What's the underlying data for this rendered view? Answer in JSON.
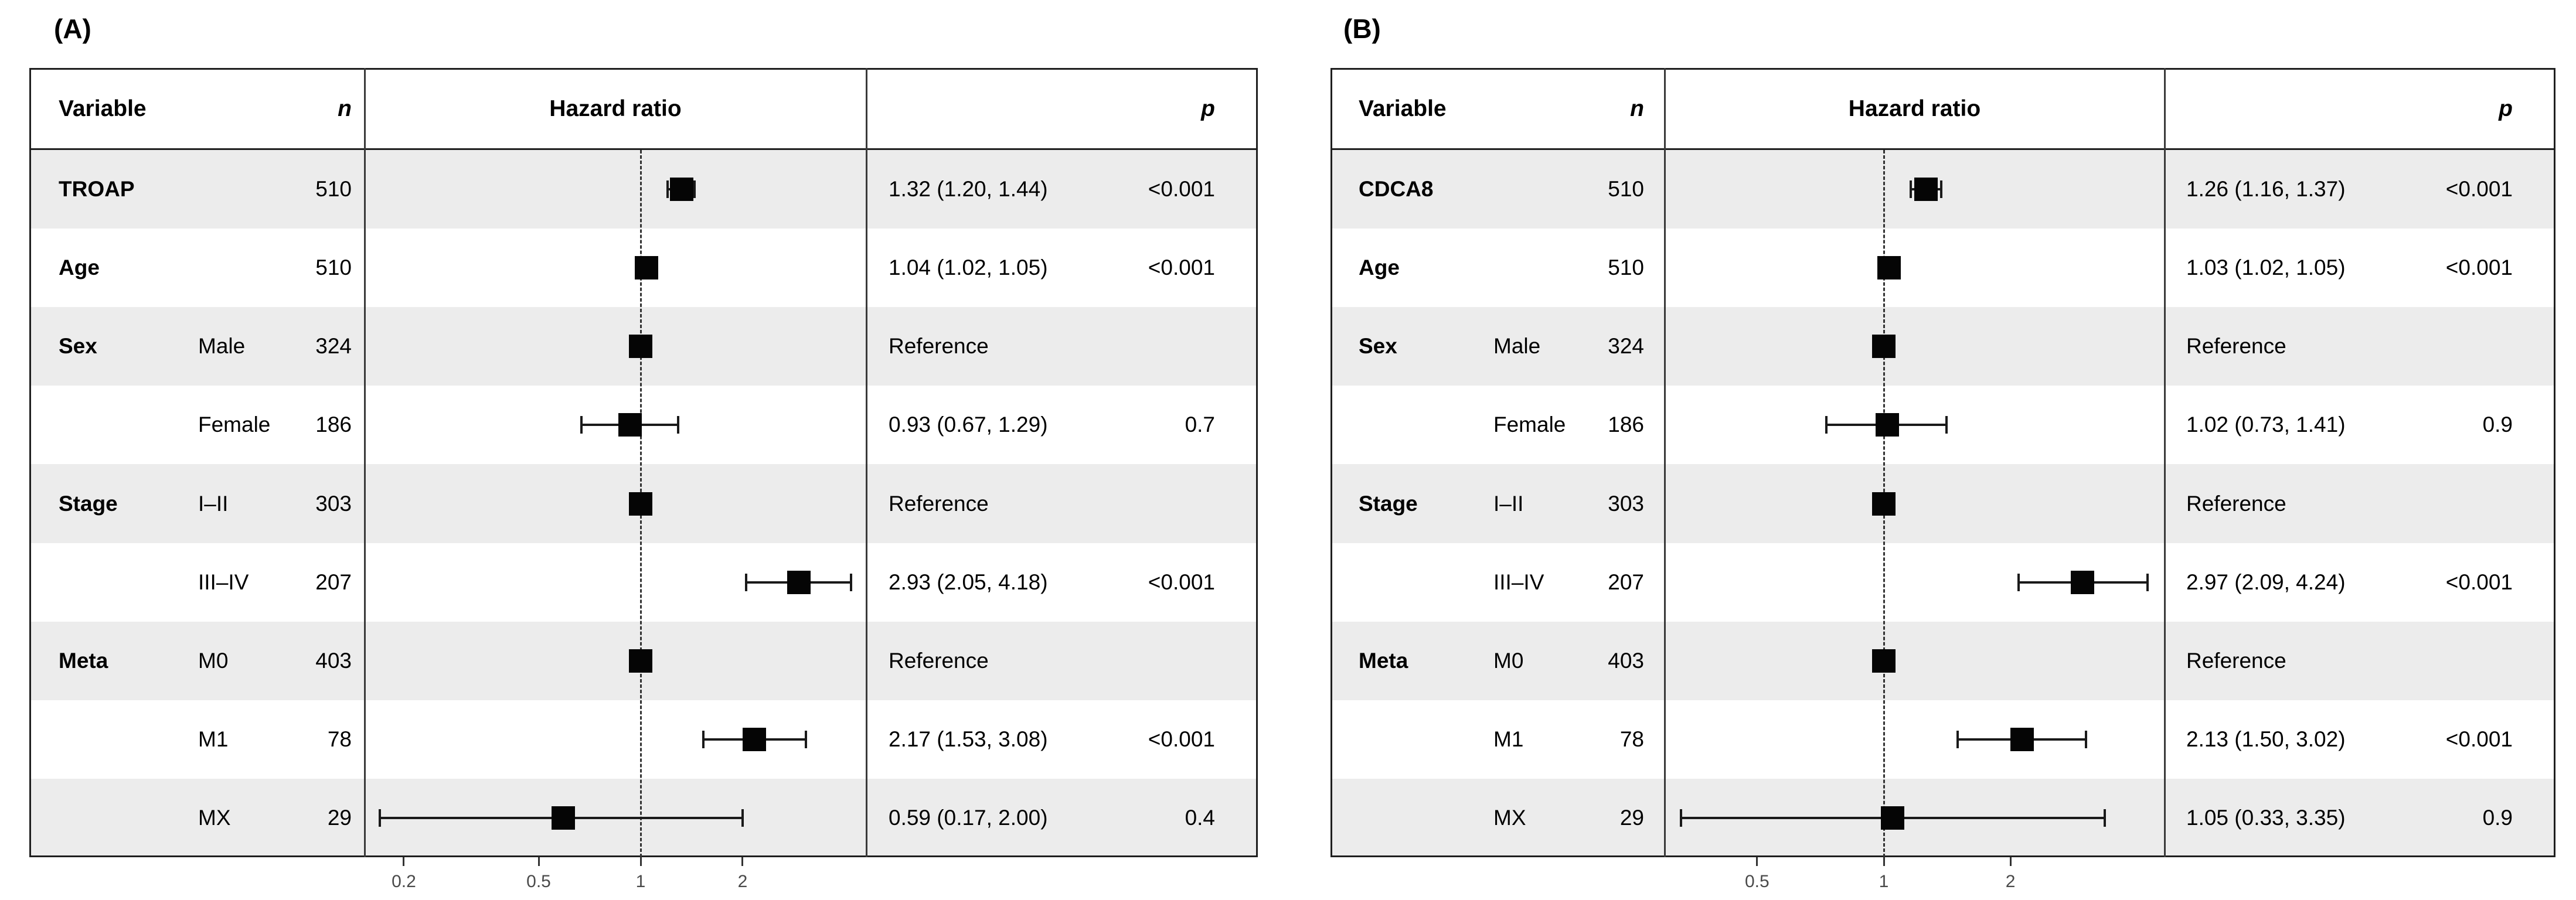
{
  "figure": {
    "description": "Two-panel forest plot of multivariable Cox regression hazard ratios",
    "panel_a_label": "(A)",
    "panel_b_label": "(B)"
  },
  "colors": {
    "background": "#ffffff",
    "row_shade": "#ececec",
    "table_border": "#1f1f1f",
    "separator": "#3a3a3a",
    "marker": "#050505",
    "ci_line": "#1a1a1a",
    "reference_dash": "#333333",
    "tick": "#333333",
    "tick_label": "#4a4a4a",
    "text": "#000000"
  },
  "chart_data": [
    {
      "type": "scatter",
      "subtype": "forest-plot",
      "panel_label": "(A)",
      "columns": {
        "variable": "Variable",
        "n": "n",
        "hazard_ratio": "Hazard ratio",
        "p": "p"
      },
      "x_scale": "log",
      "x_ticks": [
        "0.2",
        "0.5",
        "1",
        "2"
      ],
      "x_range": [
        0.16,
        4.6
      ],
      "reference_line": 1,
      "legend": "none",
      "rows": [
        {
          "variable": "TROAP",
          "level": "",
          "n": "510",
          "hr": 1.32,
          "ci_low": 1.2,
          "ci_high": 1.44,
          "estimate": "1.32 (1.20, 1.44)",
          "p": "<0.001",
          "shaded": true
        },
        {
          "variable": "Age",
          "level": "",
          "n": "510",
          "hr": 1.04,
          "ci_low": 1.02,
          "ci_high": 1.05,
          "estimate": "1.04 (1.02, 1.05)",
          "p": "<0.001",
          "shaded": false
        },
        {
          "variable": "Sex",
          "level": "Male",
          "n": "324",
          "hr": 1,
          "ci_low": null,
          "ci_high": null,
          "estimate": "Reference",
          "p": "",
          "shaded": true
        },
        {
          "variable": "",
          "level": "Female",
          "n": "186",
          "hr": 0.93,
          "ci_low": 0.67,
          "ci_high": 1.29,
          "estimate": "0.93 (0.67, 1.29)",
          "p": "0.7",
          "shaded": false
        },
        {
          "variable": "Stage",
          "level": "I–II",
          "n": "303",
          "hr": 1,
          "ci_low": null,
          "ci_high": null,
          "estimate": "Reference",
          "p": "",
          "shaded": true
        },
        {
          "variable": "",
          "level": "III–IV",
          "n": "207",
          "hr": 2.93,
          "ci_low": 2.05,
          "ci_high": 4.18,
          "estimate": "2.93 (2.05, 4.18)",
          "p": "<0.001",
          "shaded": false
        },
        {
          "variable": "Meta",
          "level": "M0",
          "n": "403",
          "hr": 1,
          "ci_low": null,
          "ci_high": null,
          "estimate": "Reference",
          "p": "",
          "shaded": true
        },
        {
          "variable": "",
          "level": "M1",
          "n": "78",
          "hr": 2.17,
          "ci_low": 1.53,
          "ci_high": 3.08,
          "estimate": "2.17 (1.53, 3.08)",
          "p": "<0.001",
          "shaded": false
        },
        {
          "variable": "",
          "level": "MX",
          "n": "29",
          "hr": 0.59,
          "ci_low": 0.17,
          "ci_high": 2.0,
          "estimate": "0.59 (0.17, 2.00)",
          "p": "0.4",
          "shaded": true
        }
      ]
    },
    {
      "type": "scatter",
      "subtype": "forest-plot",
      "panel_label": "(B)",
      "columns": {
        "variable": "Variable",
        "n": "n",
        "hazard_ratio": "Hazard ratio",
        "p": "p"
      },
      "x_scale": "log",
      "x_ticks": [
        "0.5",
        "1",
        "2"
      ],
      "x_range": [
        0.31,
        4.7
      ],
      "reference_line": 1,
      "legend": "none",
      "rows": [
        {
          "variable": "CDCA8",
          "level": "",
          "n": "510",
          "hr": 1.26,
          "ci_low": 1.16,
          "ci_high": 1.37,
          "estimate": "1.26 (1.16, 1.37)",
          "p": "<0.001",
          "shaded": true
        },
        {
          "variable": "Age",
          "level": "",
          "n": "510",
          "hr": 1.03,
          "ci_low": 1.02,
          "ci_high": 1.05,
          "estimate": "1.03 (1.02, 1.05)",
          "p": "<0.001",
          "shaded": false
        },
        {
          "variable": "Sex",
          "level": "Male",
          "n": "324",
          "hr": 1,
          "ci_low": null,
          "ci_high": null,
          "estimate": "Reference",
          "p": "",
          "shaded": true
        },
        {
          "variable": "",
          "level": "Female",
          "n": "186",
          "hr": 1.02,
          "ci_low": 0.73,
          "ci_high": 1.41,
          "estimate": "1.02 (0.73, 1.41)",
          "p": "0.9",
          "shaded": false
        },
        {
          "variable": "Stage",
          "level": "I–II",
          "n": "303",
          "hr": 1,
          "ci_low": null,
          "ci_high": null,
          "estimate": "Reference",
          "p": "",
          "shaded": true
        },
        {
          "variable": "",
          "level": "III–IV",
          "n": "207",
          "hr": 2.97,
          "ci_low": 2.09,
          "ci_high": 4.24,
          "estimate": "2.97 (2.09, 4.24)",
          "p": "<0.001",
          "shaded": false
        },
        {
          "variable": "Meta",
          "level": "M0",
          "n": "403",
          "hr": 1,
          "ci_low": null,
          "ci_high": null,
          "estimate": "Reference",
          "p": "",
          "shaded": true
        },
        {
          "variable": "",
          "level": "M1",
          "n": "78",
          "hr": 2.13,
          "ci_low": 1.5,
          "ci_high": 3.02,
          "estimate": "2.13 (1.50, 3.02)",
          "p": "<0.001",
          "shaded": false
        },
        {
          "variable": "",
          "level": "MX",
          "n": "29",
          "hr": 1.05,
          "ci_low": 0.33,
          "ci_high": 3.35,
          "estimate": "1.05 (0.33, 3.35)",
          "p": "0.9",
          "shaded": true
        }
      ]
    }
  ]
}
